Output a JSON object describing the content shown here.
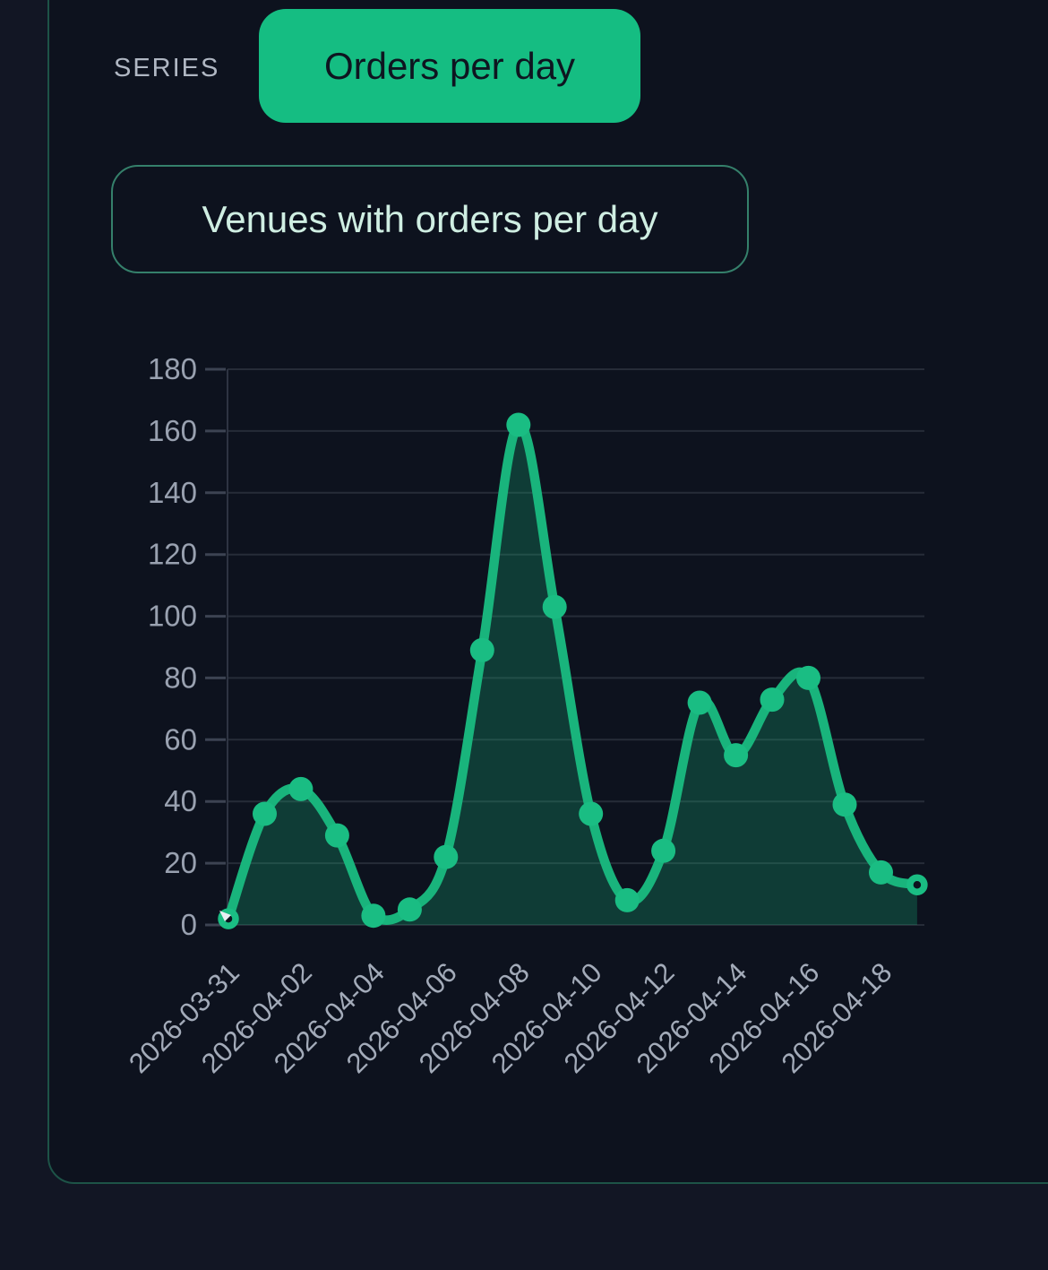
{
  "panel": {
    "series_label": "SERIES",
    "series_button_label": "Orders per day",
    "filter_button_label": "Venues with orders per day"
  },
  "theme": {
    "page_bg": "#121624",
    "card_bg": "#0d121e",
    "card_border": "#1d5347",
    "label_gray": "#b0b7c3",
    "accent_green": "#15bd82",
    "button_text": "#0e1520",
    "outline_border": "#35806b",
    "outline_text": "#cfeee2",
    "tick_text": "#99a1b0",
    "tick_text_x": "#a3abb9"
  },
  "chart_data": {
    "type": "area",
    "title": "",
    "xlabel": "",
    "ylabel": "",
    "series_name": "Orders per day",
    "x": [
      "2026-03-31",
      "2026-04-01",
      "2026-04-02",
      "2026-04-03",
      "2026-04-04",
      "2026-04-05",
      "2026-04-06",
      "2026-04-07",
      "2026-04-08",
      "2026-04-09",
      "2026-04-10",
      "2026-04-11",
      "2026-04-12",
      "2026-04-13",
      "2026-04-14",
      "2026-04-15",
      "2026-04-16",
      "2026-04-17",
      "2026-04-18",
      "2026-04-19"
    ],
    "values": [
      2,
      36,
      44,
      29,
      3,
      5,
      22,
      89,
      162,
      103,
      36,
      8,
      24,
      72,
      55,
      73,
      80,
      39,
      17,
      13
    ],
    "x_tick_labels": [
      "2026-03-31",
      "2026-04-02",
      "2026-04-04",
      "2026-04-06",
      "2026-04-08",
      "2026-04-10",
      "2026-04-12",
      "2026-04-14",
      "2026-04-16",
      "2026-04-18"
    ],
    "y_ticks": [
      0,
      20,
      40,
      60,
      80,
      100,
      120,
      140,
      160,
      180
    ],
    "ylim": [
      0,
      180
    ],
    "grid": "horizontal",
    "legend": "none",
    "marker_style": "filled-dots-with-hollow-endpoints",
    "colors": {
      "line": "#19b47c",
      "area": "rgba(23,183,125,0.26)",
      "dot": "#1abd83",
      "grid": "#262c38",
      "axis": "#2e3442",
      "tick": "#3c4352"
    }
  }
}
